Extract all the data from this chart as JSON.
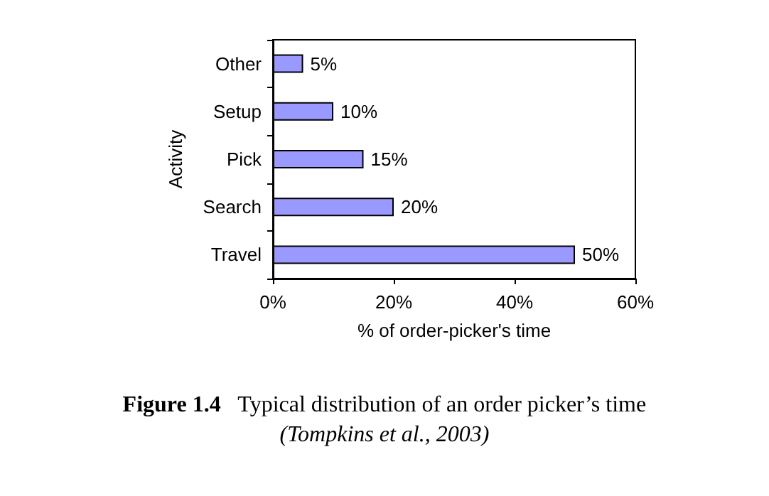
{
  "chart_data": {
    "type": "bar",
    "orientation": "horizontal",
    "title": "Figure 1.4   Typical distribution of an order picker’s time",
    "annotations": [
      "(Tompkins et al., 2003)"
    ],
    "xlabel": "% of order-picker's time",
    "ylabel": "Activity",
    "categories": [
      "Other",
      "Setup",
      "Pick",
      "Search",
      "Travel"
    ],
    "values": [
      5,
      10,
      15,
      20,
      50
    ],
    "value_labels": [
      "5%",
      "10%",
      "15%",
      "20%",
      "50%"
    ],
    "color": "#9999ff",
    "xlim": [
      0,
      60
    ],
    "xticks": [
      {
        "value": 0,
        "label": "0%"
      },
      {
        "value": 20,
        "label": "20%"
      },
      {
        "value": 40,
        "label": "40%"
      },
      {
        "value": 60,
        "label": "60%"
      }
    ],
    "grid": false
  }
}
